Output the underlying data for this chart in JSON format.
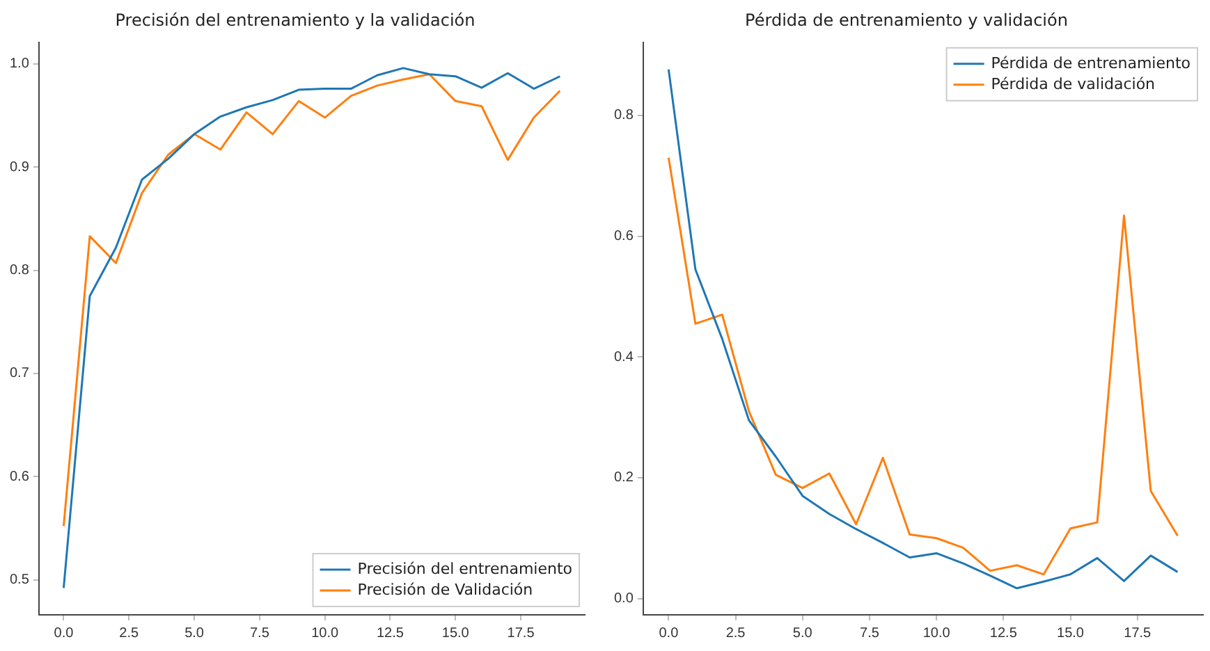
{
  "chart_data": [
    {
      "type": "line",
      "title": "Precisión del entrenamiento y la validación",
      "x": [
        0,
        1,
        2,
        3,
        4,
        5,
        6,
        7,
        8,
        9,
        10,
        11,
        12,
        13,
        14,
        15,
        16,
        17,
        18,
        19
      ],
      "series": [
        {
          "name": "Precisión del entrenamiento",
          "color": "#1f77b4",
          "values": [
            0.492,
            0.775,
            0.822,
            0.888,
            0.908,
            0.932,
            0.949,
            0.958,
            0.965,
            0.975,
            0.976,
            0.976,
            0.989,
            0.996,
            0.99,
            0.988,
            0.977,
            0.991,
            0.976,
            0.988
          ]
        },
        {
          "name": "Precisión de Validación",
          "color": "#ff7f0e",
          "values": [
            0.552,
            0.833,
            0.807,
            0.875,
            0.912,
            0.932,
            0.917,
            0.953,
            0.932,
            0.964,
            0.948,
            0.969,
            0.979,
            0.985,
            0.99,
            0.964,
            0.959,
            0.907,
            0.948,
            0.974
          ]
        }
      ],
      "xlim": [
        -0.95,
        19.95
      ],
      "xticks": [
        {
          "value": 0,
          "label": "0.0"
        },
        2.5,
        {
          "value": 5,
          "label": "5.0"
        },
        7.5,
        {
          "value": 10,
          "label": "10.0"
        },
        12.5,
        {
          "value": 15,
          "label": "15.0"
        },
        17.5
      ],
      "ylim": [
        0.466,
        1.021
      ],
      "yticks": [
        0.5,
        0.6,
        0.7,
        0.8,
        0.9,
        {
          "value": 1,
          "label": "1.0"
        }
      ],
      "grid": false,
      "legend": "bottom right",
      "marker": "none",
      "line_style": "solid"
    },
    {
      "type": "line",
      "title": "Pérdida de entrenamiento y validación",
      "x": [
        0,
        1,
        2,
        3,
        4,
        5,
        6,
        7,
        8,
        9,
        10,
        11,
        12,
        13,
        14,
        15,
        16,
        17,
        18,
        19
      ],
      "series": [
        {
          "name": "Pérdida de entrenamiento",
          "color": "#1f77b4",
          "values": [
            0.876,
            0.545,
            0.43,
            0.295,
            0.235,
            0.17,
            0.14,
            0.115,
            0.092,
            0.068,
            0.075,
            0.058,
            0.038,
            0.017,
            0.028,
            0.04,
            0.067,
            0.029,
            0.071,
            0.044
          ]
        },
        {
          "name": "Pérdida de validación",
          "color": "#ff7f0e",
          "values": [
            0.73,
            0.455,
            0.47,
            0.31,
            0.205,
            0.183,
            0.207,
            0.123,
            0.233,
            0.106,
            0.1,
            0.084,
            0.046,
            0.055,
            0.04,
            0.116,
            0.126,
            0.634,
            0.178,
            0.104
          ]
        }
      ],
      "xlim": [
        -0.95,
        19.95
      ],
      "xticks": [
        {
          "value": 0,
          "label": "0.0"
        },
        2.5,
        {
          "value": 5,
          "label": "5.0"
        },
        7.5,
        {
          "value": 10,
          "label": "10.0"
        },
        12.5,
        {
          "value": 15,
          "label": "15.0"
        },
        17.5
      ],
      "ylim": [
        -0.027,
        0.921
      ],
      "yticks": [
        {
          "value": 0,
          "label": "0.0"
        },
        0.2,
        0.4,
        0.6,
        0.8
      ],
      "grid": false,
      "legend": "top right",
      "marker": "none",
      "line_style": "solid"
    }
  ]
}
